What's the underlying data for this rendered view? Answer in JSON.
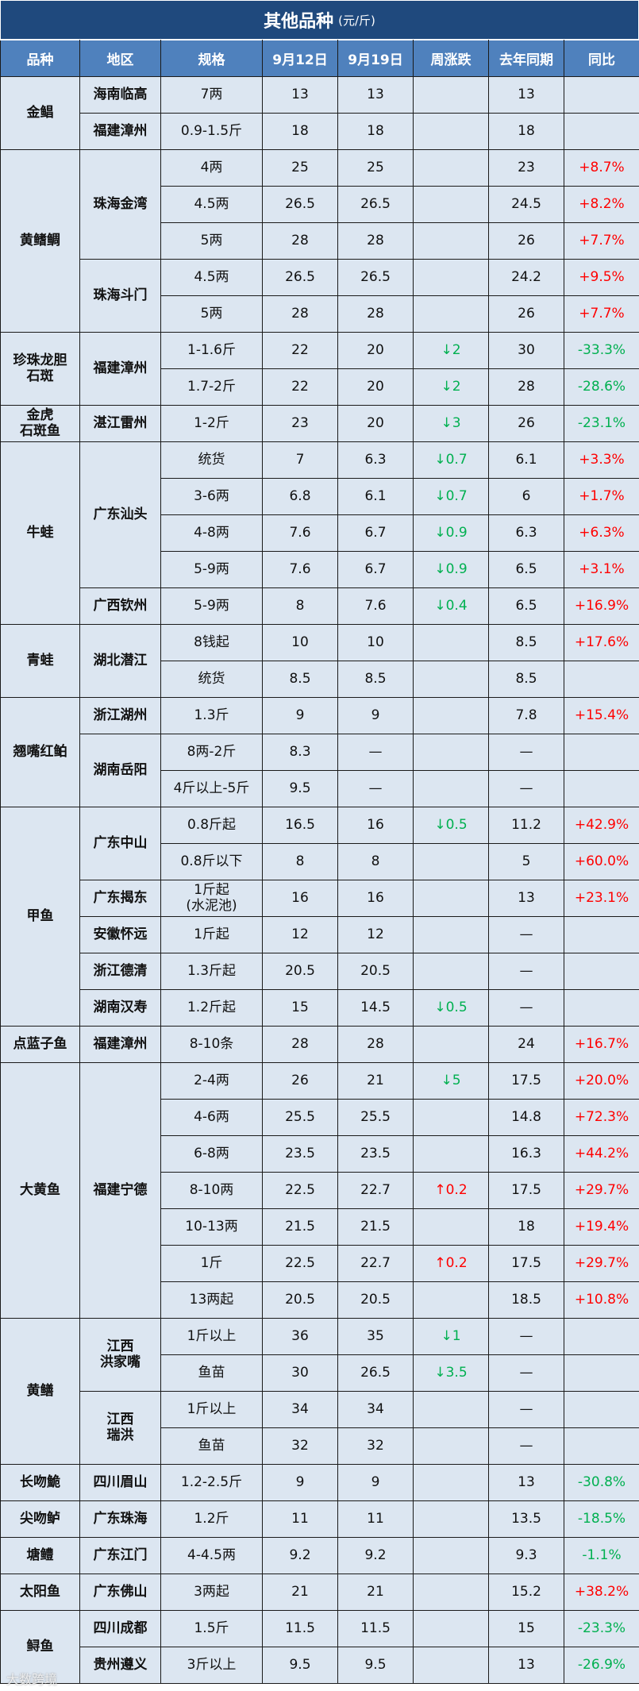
{
  "title": "其他品种",
  "unit": "(元/斤)",
  "headers": [
    "品种",
    "地区",
    "规格",
    "9月12日",
    "9月19日",
    "周涨跌",
    "去年同期",
    "同比"
  ],
  "watermark": "大数跨境",
  "colors": {
    "title_bg": "#1f497d",
    "header_bg": "#4f81bd",
    "cell_bg": "#dce6f1",
    "rise": "#ff0000",
    "fall": "#00b050"
  },
  "groups": [
    {
      "species": "金鲳",
      "regions": [
        {
          "region": "海南临高",
          "rows": [
            [
              "7两",
              "13",
              "13",
              "",
              "13",
              ""
            ]
          ]
        },
        {
          "region": "福建漳州",
          "rows": [
            [
              "0.9-1.5斤",
              "18",
              "18",
              "",
              "18",
              ""
            ]
          ]
        }
      ]
    },
    {
      "species": "黄鳍鲷",
      "regions": [
        {
          "region": "珠海金湾",
          "rows": [
            [
              "4两",
              "25",
              "25",
              "",
              "23",
              "+8.7%"
            ],
            [
              "4.5两",
              "26.5",
              "26.5",
              "",
              "24.5",
              "+8.2%"
            ],
            [
              "5两",
              "28",
              "28",
              "",
              "26",
              "+7.7%"
            ]
          ]
        },
        {
          "region": "珠海斗门",
          "rows": [
            [
              "4.5两",
              "26.5",
              "26.5",
              "",
              "24.2",
              "+9.5%"
            ],
            [
              "5两",
              "28",
              "28",
              "",
              "26",
              "+7.7%"
            ]
          ]
        }
      ]
    },
    {
      "species": "珍珠龙胆\n石斑",
      "regions": [
        {
          "region": "福建漳州",
          "rows": [
            [
              "1-1.6斤",
              "22",
              "20",
              "↓2",
              "30",
              "-33.3%"
            ],
            [
              "1.7-2斤",
              "22",
              "20",
              "↓2",
              "28",
              "-28.6%"
            ]
          ]
        }
      ]
    },
    {
      "species": "金虎\n石斑鱼",
      "regions": [
        {
          "region": "湛江雷州",
          "rows": [
            [
              "1-2斤",
              "23",
              "20",
              "↓3",
              "26",
              "-23.1%"
            ]
          ]
        }
      ]
    },
    {
      "species": "牛蛙",
      "regions": [
        {
          "region": "广东汕头",
          "rows": [
            [
              "统货",
              "7",
              "6.3",
              "↓0.7",
              "6.1",
              "+3.3%"
            ],
            [
              "3-6两",
              "6.8",
              "6.1",
              "↓0.7",
              "6",
              "+1.7%"
            ],
            [
              "4-8两",
              "7.6",
              "6.7",
              "↓0.9",
              "6.3",
              "+6.3%"
            ],
            [
              "5-9两",
              "7.6",
              "6.7",
              "↓0.9",
              "6.5",
              "+3.1%"
            ]
          ]
        },
        {
          "region": "广西钦州",
          "rows": [
            [
              "5-9两",
              "8",
              "7.6",
              "↓0.4",
              "6.5",
              "+16.9%"
            ]
          ]
        }
      ]
    },
    {
      "species": "青蛙",
      "regions": [
        {
          "region": "湖北潜江",
          "rows": [
            [
              "8钱起",
              "10",
              "10",
              "",
              "8.5",
              "+17.6%"
            ],
            [
              "统货",
              "8.5",
              "8.5",
              "",
              "8.5",
              ""
            ]
          ]
        }
      ]
    },
    {
      "species": "翘嘴红鲌",
      "regions": [
        {
          "region": "浙江湖州",
          "rows": [
            [
              "1.3斤",
              "9",
              "9",
              "",
              "7.8",
              "+15.4%"
            ]
          ]
        },
        {
          "region": "湖南岳阳",
          "rows": [
            [
              "8两-2斤",
              "8.3",
              "—",
              "",
              "—",
              ""
            ],
            [
              "4斤以上-5斤",
              "9.5",
              "—",
              "",
              "—",
              ""
            ]
          ]
        }
      ]
    },
    {
      "species": "甲鱼",
      "regions": [
        {
          "region": "广东中山",
          "rows": [
            [
              "0.8斤起",
              "16.5",
              "16",
              "↓0.5",
              "11.2",
              "+42.9%"
            ],
            [
              "0.8斤以下",
              "8",
              "8",
              "",
              "5",
              "+60.0%"
            ]
          ]
        },
        {
          "region": "广东揭东",
          "rows": [
            [
              "1斤起\n(水泥池)",
              "16",
              "16",
              "",
              "13",
              "+23.1%"
            ]
          ]
        },
        {
          "region": "安徽怀远",
          "rows": [
            [
              "1斤起",
              "12",
              "12",
              "",
              "—",
              ""
            ]
          ]
        },
        {
          "region": "浙江德清",
          "rows": [
            [
              "1.3斤起",
              "20.5",
              "20.5",
              "",
              "—",
              ""
            ]
          ]
        },
        {
          "region": "湖南汉寿",
          "rows": [
            [
              "1.2斤起",
              "15",
              "14.5",
              "↓0.5",
              "—",
              ""
            ]
          ]
        }
      ]
    },
    {
      "species": "点蓝子鱼",
      "regions": [
        {
          "region": "福建漳州",
          "rows": [
            [
              "8-10条",
              "28",
              "28",
              "",
              "24",
              "+16.7%"
            ]
          ]
        }
      ]
    },
    {
      "species": "大黄鱼",
      "regions": [
        {
          "region": "福建宁德",
          "rows": [
            [
              "2-4两",
              "26",
              "21",
              "↓5",
              "17.5",
              "+20.0%"
            ],
            [
              "4-6两",
              "25.5",
              "25.5",
              "",
              "14.8",
              "+72.3%"
            ],
            [
              "6-8两",
              "23.5",
              "23.5",
              "",
              "16.3",
              "+44.2%"
            ],
            [
              "8-10两",
              "22.5",
              "22.7",
              "↑0.2",
              "17.5",
              "+29.7%"
            ],
            [
              "10-13两",
              "21.5",
              "21.5",
              "",
              "18",
              "+19.4%"
            ],
            [
              "1斤",
              "22.5",
              "22.7",
              "↑0.2",
              "17.5",
              "+29.7%"
            ],
            [
              "13两起",
              "20.5",
              "20.5",
              "",
              "18.5",
              "+10.8%"
            ]
          ]
        }
      ]
    },
    {
      "species": "黄鳝",
      "regions": [
        {
          "region": "江西\n洪家嘴",
          "rows": [
            [
              "1斤以上",
              "36",
              "35",
              "↓1",
              "—",
              ""
            ],
            [
              "鱼苗",
              "30",
              "26.5",
              "↓3.5",
              "—",
              ""
            ]
          ]
        },
        {
          "region": "江西\n瑞洪",
          "rows": [
            [
              "1斤以上",
              "34",
              "34",
              "",
              "—",
              ""
            ],
            [
              "鱼苗",
              "32",
              "32",
              "",
              "—",
              ""
            ]
          ]
        }
      ]
    },
    {
      "species": "长吻鮠",
      "regions": [
        {
          "region": "四川眉山",
          "rows": [
            [
              "1.2-2.5斤",
              "9",
              "9",
              "",
              "13",
              "-30.8%"
            ]
          ]
        }
      ]
    },
    {
      "species": "尖吻鲈",
      "regions": [
        {
          "region": "广东珠海",
          "rows": [
            [
              "1.2斤",
              "11",
              "11",
              "",
              "13.5",
              "-18.5%"
            ]
          ]
        }
      ]
    },
    {
      "species": "塘鳢",
      "regions": [
        {
          "region": "广东江门",
          "rows": [
            [
              "4-4.5两",
              "9.2",
              "9.2",
              "",
              "9.3",
              "-1.1%"
            ]
          ]
        }
      ]
    },
    {
      "species": "太阳鱼",
      "regions": [
        {
          "region": "广东佛山",
          "rows": [
            [
              "3两起",
              "21",
              "21",
              "",
              "15.2",
              "+38.2%"
            ]
          ]
        }
      ]
    },
    {
      "species": "鲟鱼",
      "regions": [
        {
          "region": "四川成都",
          "rows": [
            [
              "1.5斤",
              "11.5",
              "11.5",
              "",
              "15",
              "-23.3%"
            ]
          ]
        },
        {
          "region": "贵州遵义",
          "rows": [
            [
              "3斤以上",
              "9.5",
              "9.5",
              "",
              "13",
              "-26.9%"
            ]
          ]
        }
      ]
    }
  ]
}
